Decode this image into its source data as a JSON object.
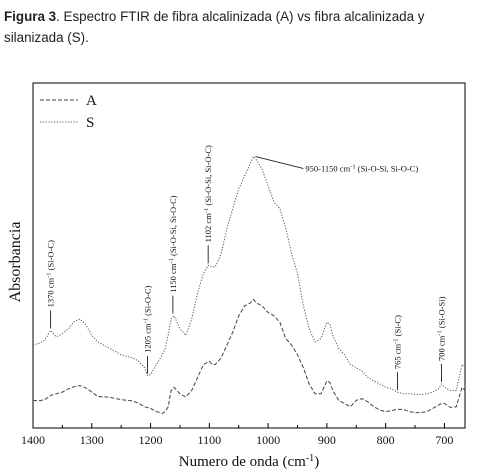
{
  "caption": {
    "label": "Figura 3",
    "text": ". Espectro FTIR de fibra alcalinizada (A) vs fibra alcalinizada y silanizada (S)."
  },
  "chart_data": {
    "type": "line",
    "xlabel": "Numero de onda (cm",
    "xlabel_sup": "-1",
    "xlabel_tail": ")",
    "ylabel": "Absorbancia",
    "xlim": [
      1400,
      665
    ],
    "ylim": [
      0,
      1
    ],
    "x_reversed": true,
    "x_ticks": [
      1400,
      1300,
      1200,
      1100,
      1000,
      900,
      800,
      700
    ],
    "legend_position": "top-left",
    "series": [
      {
        "name": "A",
        "style": "dashed",
        "color": "#444444",
        "points": [
          [
            1400,
            0.03
          ],
          [
            1390,
            0.028
          ],
          [
            1380,
            0.032
          ],
          [
            1370,
            0.045
          ],
          [
            1360,
            0.05
          ],
          [
            1350,
            0.055
          ],
          [
            1340,
            0.065
          ],
          [
            1330,
            0.072
          ],
          [
            1320,
            0.075
          ],
          [
            1310,
            0.068
          ],
          [
            1300,
            0.055
          ],
          [
            1290,
            0.042
          ],
          [
            1280,
            0.04
          ],
          [
            1270,
            0.04
          ],
          [
            1260,
            0.035
          ],
          [
            1250,
            0.032
          ],
          [
            1240,
            0.03
          ],
          [
            1230,
            0.028
          ],
          [
            1220,
            0.02
          ],
          [
            1210,
            0.01
          ],
          [
            1200,
            0.005
          ],
          [
            1190,
            -0.005
          ],
          [
            1180,
            -0.01
          ],
          [
            1175,
            -0.005
          ],
          [
            1170,
            0.01
          ],
          [
            1165,
            0.06
          ],
          [
            1160,
            0.07
          ],
          [
            1150,
            0.05
          ],
          [
            1140,
            0.04
          ],
          [
            1130,
            0.06
          ],
          [
            1120,
            0.1
          ],
          [
            1110,
            0.14
          ],
          [
            1100,
            0.15
          ],
          [
            1095,
            0.14
          ],
          [
            1090,
            0.14
          ],
          [
            1080,
            0.16
          ],
          [
            1070,
            0.2
          ],
          [
            1060,
            0.24
          ],
          [
            1050,
            0.29
          ],
          [
            1040,
            0.32
          ],
          [
            1030,
            0.33
          ],
          [
            1025,
            0.34
          ],
          [
            1020,
            0.33
          ],
          [
            1010,
            0.32
          ],
          [
            1000,
            0.3
          ],
          [
            990,
            0.29
          ],
          [
            980,
            0.27
          ],
          [
            970,
            0.22
          ],
          [
            960,
            0.2
          ],
          [
            950,
            0.17
          ],
          [
            940,
            0.13
          ],
          [
            930,
            0.08
          ],
          [
            920,
            0.05
          ],
          [
            910,
            0.05
          ],
          [
            900,
            0.09
          ],
          [
            895,
            0.085
          ],
          [
            890,
            0.06
          ],
          [
            880,
            0.03
          ],
          [
            870,
            0.02
          ],
          [
            860,
            0.01
          ],
          [
            850,
            0.03
          ],
          [
            840,
            0.035
          ],
          [
            830,
            0.025
          ],
          [
            820,
            0.01
          ],
          [
            810,
            0.0
          ],
          [
            800,
            -0.005
          ],
          [
            790,
            -0.002
          ],
          [
            780,
            0.002
          ],
          [
            770,
            0.002
          ],
          [
            760,
            -0.005
          ],
          [
            750,
            -0.008
          ],
          [
            740,
            -0.008
          ],
          [
            730,
            -0.005
          ],
          [
            720,
            0.005
          ],
          [
            710,
            0.015
          ],
          [
            705,
            0.02
          ],
          [
            700,
            0.02
          ],
          [
            690,
            0.008
          ],
          [
            680,
            0.01
          ],
          [
            675,
            0.04
          ],
          [
            670,
            0.07
          ],
          [
            665,
            0.06
          ]
        ]
      },
      {
        "name": "S",
        "style": "dotted",
        "color": "#555555",
        "points": [
          [
            1400,
            0.2
          ],
          [
            1390,
            0.205
          ],
          [
            1380,
            0.215
          ],
          [
            1370,
            0.245
          ],
          [
            1360,
            0.225
          ],
          [
            1350,
            0.235
          ],
          [
            1340,
            0.25
          ],
          [
            1330,
            0.272
          ],
          [
            1320,
            0.28
          ],
          [
            1310,
            0.262
          ],
          [
            1300,
            0.23
          ],
          [
            1290,
            0.21
          ],
          [
            1280,
            0.2
          ],
          [
            1270,
            0.19
          ],
          [
            1260,
            0.18
          ],
          [
            1250,
            0.17
          ],
          [
            1240,
            0.165
          ],
          [
            1230,
            0.16
          ],
          [
            1220,
            0.15
          ],
          [
            1210,
            0.13
          ],
          [
            1205,
            0.105
          ],
          [
            1200,
            0.11
          ],
          [
            1190,
            0.14
          ],
          [
            1180,
            0.17
          ],
          [
            1175,
            0.19
          ],
          [
            1170,
            0.23
          ],
          [
            1165,
            0.28
          ],
          [
            1160,
            0.29
          ],
          [
            1150,
            0.25
          ],
          [
            1140,
            0.23
          ],
          [
            1130,
            0.28
          ],
          [
            1120,
            0.36
          ],
          [
            1110,
            0.42
          ],
          [
            1102,
            0.445
          ],
          [
            1095,
            0.44
          ],
          [
            1090,
            0.44
          ],
          [
            1080,
            0.48
          ],
          [
            1070,
            0.56
          ],
          [
            1060,
            0.62
          ],
          [
            1050,
            0.68
          ],
          [
            1040,
            0.72
          ],
          [
            1030,
            0.76
          ],
          [
            1025,
            0.78
          ],
          [
            1020,
            0.77
          ],
          [
            1010,
            0.74
          ],
          [
            1000,
            0.69
          ],
          [
            990,
            0.64
          ],
          [
            980,
            0.62
          ],
          [
            970,
            0.56
          ],
          [
            960,
            0.48
          ],
          [
            950,
            0.42
          ],
          [
            940,
            0.32
          ],
          [
            930,
            0.25
          ],
          [
            920,
            0.21
          ],
          [
            910,
            0.22
          ],
          [
            900,
            0.27
          ],
          [
            895,
            0.265
          ],
          [
            890,
            0.23
          ],
          [
            880,
            0.19
          ],
          [
            870,
            0.17
          ],
          [
            860,
            0.14
          ],
          [
            850,
            0.13
          ],
          [
            840,
            0.12
          ],
          [
            830,
            0.1
          ],
          [
            820,
            0.09
          ],
          [
            810,
            0.08
          ],
          [
            800,
            0.07
          ],
          [
            790,
            0.065
          ],
          [
            780,
            0.055
          ],
          [
            770,
            0.05
          ],
          [
            760,
            0.05
          ],
          [
            750,
            0.048
          ],
          [
            740,
            0.048
          ],
          [
            730,
            0.05
          ],
          [
            720,
            0.055
          ],
          [
            710,
            0.065
          ],
          [
            705,
            0.08
          ],
          [
            700,
            0.07
          ],
          [
            690,
            0.06
          ],
          [
            680,
            0.06
          ],
          [
            675,
            0.1
          ],
          [
            670,
            0.14
          ],
          [
            665,
            0.13
          ]
        ]
      }
    ],
    "annotations": [
      {
        "text": "1370 cm",
        "sup": "-1",
        "tail": " (Si-O-C)",
        "x": 1370,
        "y": 0.245,
        "orient": "vertical"
      },
      {
        "text": "1205 cm",
        "sup": "-1",
        "tail": " (Si-O-C)",
        "x": 1205,
        "y": 0.105,
        "orient": "vertical"
      },
      {
        "text": "1150 cm",
        "sup": "-1",
        "tail": " (Si-O-Si, Si-O-C)",
        "x": 1162,
        "y": 0.29,
        "orient": "vertical"
      },
      {
        "text": "1102 cm",
        "sup": "-1",
        "tail": " (Si-O-Si, Si-O-C)",
        "x": 1102,
        "y": 0.445,
        "orient": "vertical"
      },
      {
        "text": "765 cm",
        "sup": "-1",
        "tail": " (Si-C)",
        "x": 780,
        "y": 0.055,
        "orient": "vertical"
      },
      {
        "text": "700 cm",
        "sup": "-1",
        "tail": " (Si-O-Si)",
        "x": 705,
        "y": 0.08,
        "orient": "vertical"
      },
      {
        "text": "950-1150 cm",
        "sup": "-1",
        "tail": " (Si-O-Si, Si-O-C)",
        "x": 1025,
        "y": 0.78,
        "orient": "horizontal"
      }
    ]
  }
}
